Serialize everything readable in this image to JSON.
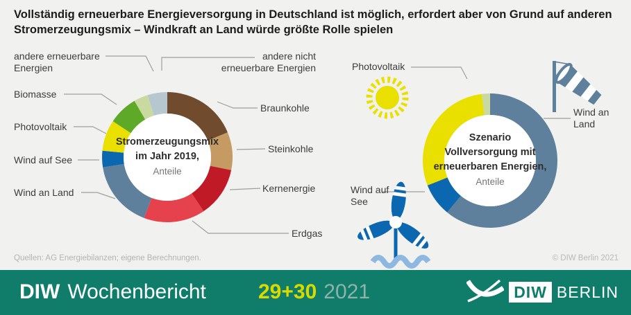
{
  "title": {
    "line1": "Vollständig erneuerbare Energieversorgung in Deutschland ist möglich, erfordert aber von Grund auf anderen",
    "line2": "Stromerzeugungsmix – Windkraft an Land würde größte Rolle spielen"
  },
  "source_line": "Quellen: AG Energiebilanzen; eigene Berechnungen.",
  "copyright": "© DIW Berlin 2021",
  "footer": {
    "brand_bold": "DIW",
    "brand_regular": "Wochenbericht",
    "issue": "29+30",
    "year": "2021",
    "logo": {
      "diw": "DIW",
      "berlin": "BERLIN"
    }
  },
  "colors": {
    "background": "#f1f1ef",
    "footer_teal": "#107d6b",
    "issue_yellow": "#d8da00",
    "year_gray": "#8fb3ab",
    "label_text": "#3c3c3b",
    "leader_line": "#9e9e9c",
    "muted_text": "#b3b3b1",
    "waves_lightblue": "#8fb8e0"
  },
  "chart_data": [
    {
      "type": "pie",
      "variant": "donut",
      "center_title_line1": "Stromerzeugungsmix",
      "center_title_line2": "im Jahr 2019,",
      "center_subtitle": "Anteile",
      "legend_position": "around-chart-with-leader-lines",
      "note": "Shares in percent, estimated from arc angles; the graphic prints no numeric labels.",
      "segments": [
        {
          "label": "Braunkohle",
          "value": 18.8,
          "color": "#704b2d"
        },
        {
          "label": "Steinkohle",
          "value": 9.4,
          "color": "#c69a63"
        },
        {
          "label": "Kernenergie",
          "value": 12.4,
          "color": "#c01a27"
        },
        {
          "label": "Erdgas",
          "value": 15.2,
          "color": "#e6424e"
        },
        {
          "label": "Wind an Land",
          "value": 16.7,
          "color": "#5e809c"
        },
        {
          "label": "Wind auf See",
          "value": 4.1,
          "color": "#0b67af"
        },
        {
          "label": "Photovoltaik",
          "value": 7.7,
          "color": "#eae000"
        },
        {
          "label": "Biomasse",
          "value": 7.3,
          "color": "#5fa928"
        },
        {
          "label": "andere erneuerbare Energien",
          "value": 3.5,
          "color": "#c8daa0"
        },
        {
          "label": "andere nicht erneuerbare Energien",
          "value": 4.9,
          "color": "#b7c7d0"
        }
      ]
    },
    {
      "type": "pie",
      "variant": "donut",
      "center_title_line1": "Szenario",
      "center_title_line2": "Vollversorgung mit",
      "center_title_line3": "erneuerbaren Energien,",
      "center_subtitle": "Anteile",
      "legend_position": "around-chart-with-leader-lines",
      "note": "Shares in percent, estimated from arc angles; the graphic prints no numeric labels.",
      "segments": [
        {
          "label": "Wind an Land",
          "value": 61,
          "color": "#5e809c"
        },
        {
          "label": "Wind auf See",
          "value": 8,
          "color": "#0b67af"
        },
        {
          "label": "Photovoltaik",
          "value": 29,
          "color": "#eae000"
        },
        {
          "label": "andere erneuerbare Energien",
          "value": 2,
          "color": "#c8daa0"
        }
      ]
    }
  ]
}
